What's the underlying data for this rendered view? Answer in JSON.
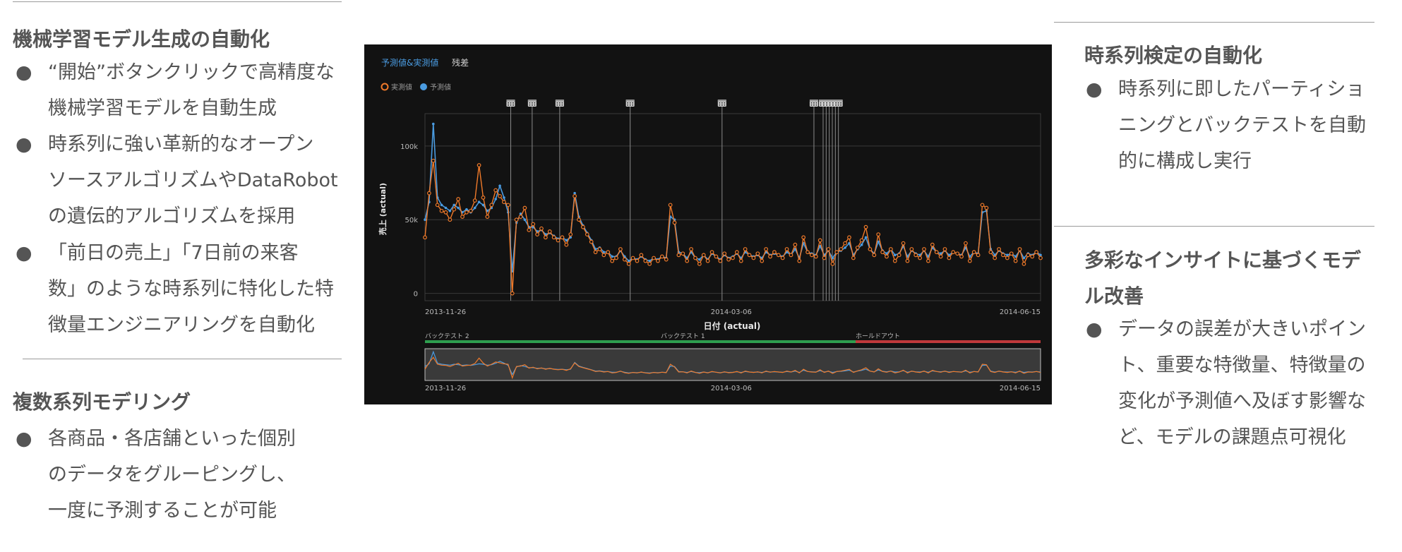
{
  "left": {
    "s1": {
      "title": "機械学習モデル生成の自動化",
      "bullets": [
        {
          "bullet": "●",
          "lines": [
            "“開始”ボタンクリックで高精度な",
            "機械学習モデルを自動生成"
          ]
        },
        {
          "bullet": "●",
          "lines": [
            "時系列に強い革新的なオープン",
            "ソースアルゴリズムやDataRobot",
            "の遺伝的アルゴリズムを採用"
          ]
        },
        {
          "bullet": "●",
          "lines": [
            "「前日の売上」「7日前の来客",
            "数」のような時系列に特化した特",
            "徴量エンジニアリングを自動化"
          ]
        }
      ]
    },
    "s2": {
      "title": "複数系列モデリング",
      "bullets": [
        {
          "bullet": "●",
          "lines": [
            "各商品・各店舗といった個別",
            "のデータをグルーピングし、",
            "一度に予測することが可能"
          ]
        }
      ]
    }
  },
  "right": {
    "s1": {
      "title": "時系列検定の自動化",
      "bullets": [
        {
          "bullet": "●",
          "lines": [
            "時系列に即したパーティショ",
            "ニングとバックテストを自動",
            "的に構成し実行"
          ]
        }
      ]
    },
    "s2": {
      "title_lines": [
        "多彩なインサイトに基づくモデ",
        "ル改善"
      ],
      "bullets": [
        {
          "bullet": "●",
          "lines": [
            "データの誤差が大きいポイン",
            "ト、重要な特徴量、特徴量の",
            "変化が予測値へ及ぼす影響な",
            "ど、モデルの課題点可視化"
          ]
        }
      ]
    }
  },
  "chart_ui": {
    "tabs": [
      "予測値&実測値",
      "残差"
    ],
    "legend": [
      {
        "label": "実測値",
        "color": "#f07a2a"
      },
      {
        "label": "予測値",
        "color": "#4a9be0"
      }
    ],
    "calendar_icon": "calendar-icon",
    "partitions": [
      {
        "label": "バックテスト 2",
        "color": "#2e9e4f"
      },
      {
        "label": "バックテスト 1",
        "color": "#2e9e4f"
      },
      {
        "label": "ホールドアウト",
        "color": "#c0393b"
      }
    ]
  },
  "chart_data": {
    "type": "line",
    "xlabel": "日付 (actual)",
    "ylabel": "売上 (actual)",
    "x_ticks": [
      "2013-11-26",
      "2014-03-06",
      "2014-06-15"
    ],
    "y_ticks": [
      "0",
      "50k",
      "100k"
    ],
    "ylim": [
      -5000,
      122000
    ],
    "x_start": "2013-11-26",
    "x_end": "2014-06-15",
    "event_dates": [
      "2013-12-24",
      "2013-12-31",
      "2014-01-09",
      "2014-02-01",
      "2014-03-03",
      "2014-04-02",
      "2014-04-05",
      "2014-04-06",
      "2014-04-07",
      "2014-04-08",
      "2014-04-09",
      "2014-04-10"
    ],
    "series": [
      {
        "name": "実測値",
        "color": "#f07a2a",
        "values": [
          38000,
          68000,
          90000,
          60000,
          56000,
          55000,
          50000,
          57000,
          64000,
          52000,
          55000,
          56000,
          63000,
          87000,
          65000,
          52000,
          60000,
          70000,
          66000,
          62000,
          60000,
          0,
          50000,
          52000,
          58000,
          43000,
          47000,
          40000,
          44000,
          38000,
          42000,
          38000,
          36000,
          38000,
          33000,
          40000,
          66000,
          50000,
          45000,
          40000,
          35000,
          28000,
          30000,
          26000,
          28000,
          22000,
          24000,
          30000,
          23000,
          20000,
          24000,
          22000,
          26000,
          22000,
          20000,
          24000,
          22000,
          25000,
          23000,
          60000,
          48000,
          26000,
          27000,
          22000,
          30000,
          24000,
          20000,
          26000,
          22000,
          28000,
          25000,
          22000,
          27000,
          23000,
          24000,
          28000,
          22000,
          30000,
          26000,
          24000,
          27000,
          22000,
          30000,
          25000,
          28000,
          26000,
          24000,
          30000,
          26000,
          33000,
          22000,
          38000,
          28000,
          26000,
          25000,
          36000,
          24000,
          30000,
          20000,
          28000,
          30000,
          34000,
          38000,
          24000,
          31000,
          36000,
          45000,
          30000,
          26000,
          40000,
          28000,
          25000,
          30000,
          22000,
          26000,
          34000,
          22000,
          30000,
          26000,
          24000,
          30000,
          22000,
          33000,
          28000,
          25000,
          30000,
          24000,
          28000,
          27000,
          25000,
          34000,
          22000,
          28000,
          26000,
          60000,
          58000,
          28000,
          24000,
          30000,
          26000,
          24000,
          27000,
          22000,
          30000,
          20000,
          26000,
          25000,
          28000,
          24000
        ]
      },
      {
        "name": "予測値",
        "color": "#4a9be0",
        "values": [
          50000,
          62000,
          115000,
          65000,
          60000,
          58000,
          56000,
          60000,
          58000,
          55000,
          57000,
          55000,
          58000,
          62000,
          60000,
          56000,
          58000,
          64000,
          73000,
          65000,
          55000,
          15000,
          48000,
          54000,
          50000,
          45000,
          45000,
          42000,
          43000,
          40000,
          41000,
          39000,
          37000,
          38000,
          36000,
          38000,
          68000,
          52000,
          46000,
          41000,
          36000,
          30000,
          31000,
          28000,
          28000,
          25000,
          25000,
          29000,
          25000,
          22000,
          24000,
          23000,
          25000,
          23000,
          22000,
          24000,
          23000,
          25000,
          24000,
          52000,
          50000,
          28000,
          27000,
          24000,
          28000,
          24000,
          23000,
          26000,
          23000,
          27000,
          25000,
          23000,
          26000,
          24000,
          25000,
          27000,
          24000,
          28000,
          26000,
          25000,
          26000,
          24000,
          28000,
          26000,
          27000,
          26000,
          25000,
          28000,
          26000,
          30000,
          24000,
          34000,
          28000,
          27000,
          26000,
          32000,
          26000,
          29000,
          24000,
          28000,
          29000,
          31000,
          34000,
          26000,
          30000,
          33000,
          38000,
          30000,
          27000,
          35000,
          29000,
          27000,
          30000,
          26000,
          27000,
          32000,
          25000,
          29000,
          27000,
          26000,
          29000,
          25000,
          31000,
          28000,
          27000,
          29000,
          26000,
          28000,
          27000,
          26000,
          31000,
          25000,
          28000,
          27000,
          55000,
          56000,
          30000,
          26000,
          29000,
          27000,
          26000,
          27000,
          25000,
          29000,
          24000,
          27000,
          26000,
          28000,
          26000
        ]
      }
    ]
  }
}
